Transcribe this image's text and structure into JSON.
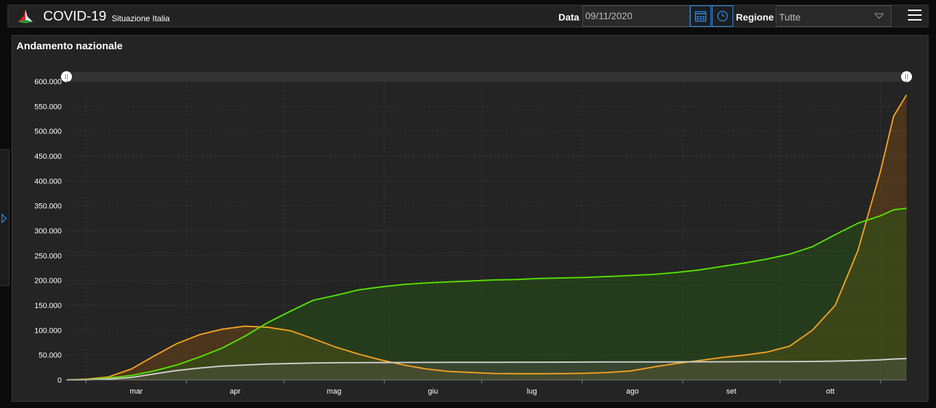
{
  "header": {
    "app_title": "COVID-19",
    "app_subtitle": "Situazione Italia",
    "date_label": "Data",
    "date_value": "09/11/2020",
    "region_label": "Regione",
    "region_value": "Tutte",
    "icons": {
      "logo": "italy-logo-icon",
      "calendar": "calendar-icon",
      "clock": "clock-icon",
      "dropdown": "chevron-down-icon",
      "menu": "hamburger-menu-icon",
      "side_panel": "expand-panel-icon"
    }
  },
  "panel": {
    "title": "Andamento nazionale"
  },
  "colors": {
    "accent": "#2f8ef0",
    "series_orange": "#f0a020",
    "series_green": "#55e000",
    "series_white": "#cfcfcf",
    "background": "#242424"
  },
  "chart_data": {
    "type": "area",
    "title": "Andamento nazionale",
    "x_tick_labels": [
      "mar",
      "apr",
      "mag",
      "giu",
      "lug",
      "ago",
      "set",
      "ott"
    ],
    "y_tick_labels": [
      "0",
      "50.000",
      "100.000",
      "150.000",
      "200.000",
      "250.000",
      "300.000",
      "350.000",
      "400.000",
      "450.000",
      "500.000",
      "550.000",
      "600.000"
    ],
    "ylim": [
      0,
      600000
    ],
    "x_range": [
      "2020-02-24",
      "2020-11-09"
    ],
    "grid": true,
    "legend": "none",
    "x": [
      "2020-02-24",
      "2020-03-01",
      "2020-03-08",
      "2020-03-15",
      "2020-03-22",
      "2020-03-29",
      "2020-04-05",
      "2020-04-12",
      "2020-04-19",
      "2020-04-26",
      "2020-05-03",
      "2020-05-10",
      "2020-05-17",
      "2020-05-24",
      "2020-05-31",
      "2020-06-07",
      "2020-06-14",
      "2020-06-21",
      "2020-06-28",
      "2020-07-05",
      "2020-07-12",
      "2020-07-19",
      "2020-07-26",
      "2020-08-02",
      "2020-08-09",
      "2020-08-16",
      "2020-08-23",
      "2020-08-30",
      "2020-09-06",
      "2020-09-13",
      "2020-09-20",
      "2020-09-27",
      "2020-10-04",
      "2020-10-11",
      "2020-10-18",
      "2020-10-25",
      "2020-11-01",
      "2020-11-05",
      "2020-11-09"
    ],
    "series": [
      {
        "color": "#f0a020",
        "fill": "rgba(150,85,15,0.35)",
        "values": [
          200,
          1500,
          6000,
          22000,
          48000,
          73000,
          91000,
          102000,
          108000,
          106000,
          99000,
          83000,
          66000,
          52000,
          40000,
          30000,
          22000,
          17000,
          15000,
          13000,
          12500,
          12500,
          12800,
          13500,
          15000,
          18000,
          26000,
          33000,
          39000,
          45000,
          50000,
          56000,
          68000,
          100000,
          150000,
          260000,
          420000,
          530000,
          573000
        ]
      },
      {
        "color": "#55e000",
        "fill": "rgba(40,90,20,0.45)",
        "values": [
          0,
          300,
          4000,
          9000,
          18000,
          30000,
          46000,
          64000,
          88000,
          115000,
          138000,
          160000,
          170000,
          181000,
          187000,
          192000,
          195000,
          197000,
          199000,
          201000,
          202000,
          204000,
          205000,
          206000,
          208000,
          210000,
          212000,
          216000,
          221000,
          228000,
          235000,
          243000,
          253000,
          268000,
          292000,
          315000,
          330000,
          342000,
          345000
        ]
      },
      {
        "color": "#cfcfcf",
        "fill": "rgba(90,90,90,0.35)",
        "values": [
          0,
          100,
          1500,
          5000,
          12000,
          19000,
          24000,
          28000,
          30000,
          32000,
          33000,
          34000,
          34500,
          34800,
          35000,
          35100,
          35200,
          35300,
          35400,
          35500,
          35600,
          35700,
          35800,
          35900,
          36000,
          36100,
          36200,
          36300,
          36400,
          36500,
          36600,
          36700,
          36900,
          37200,
          37800,
          38800,
          40500,
          42000,
          43000
        ]
      }
    ]
  }
}
